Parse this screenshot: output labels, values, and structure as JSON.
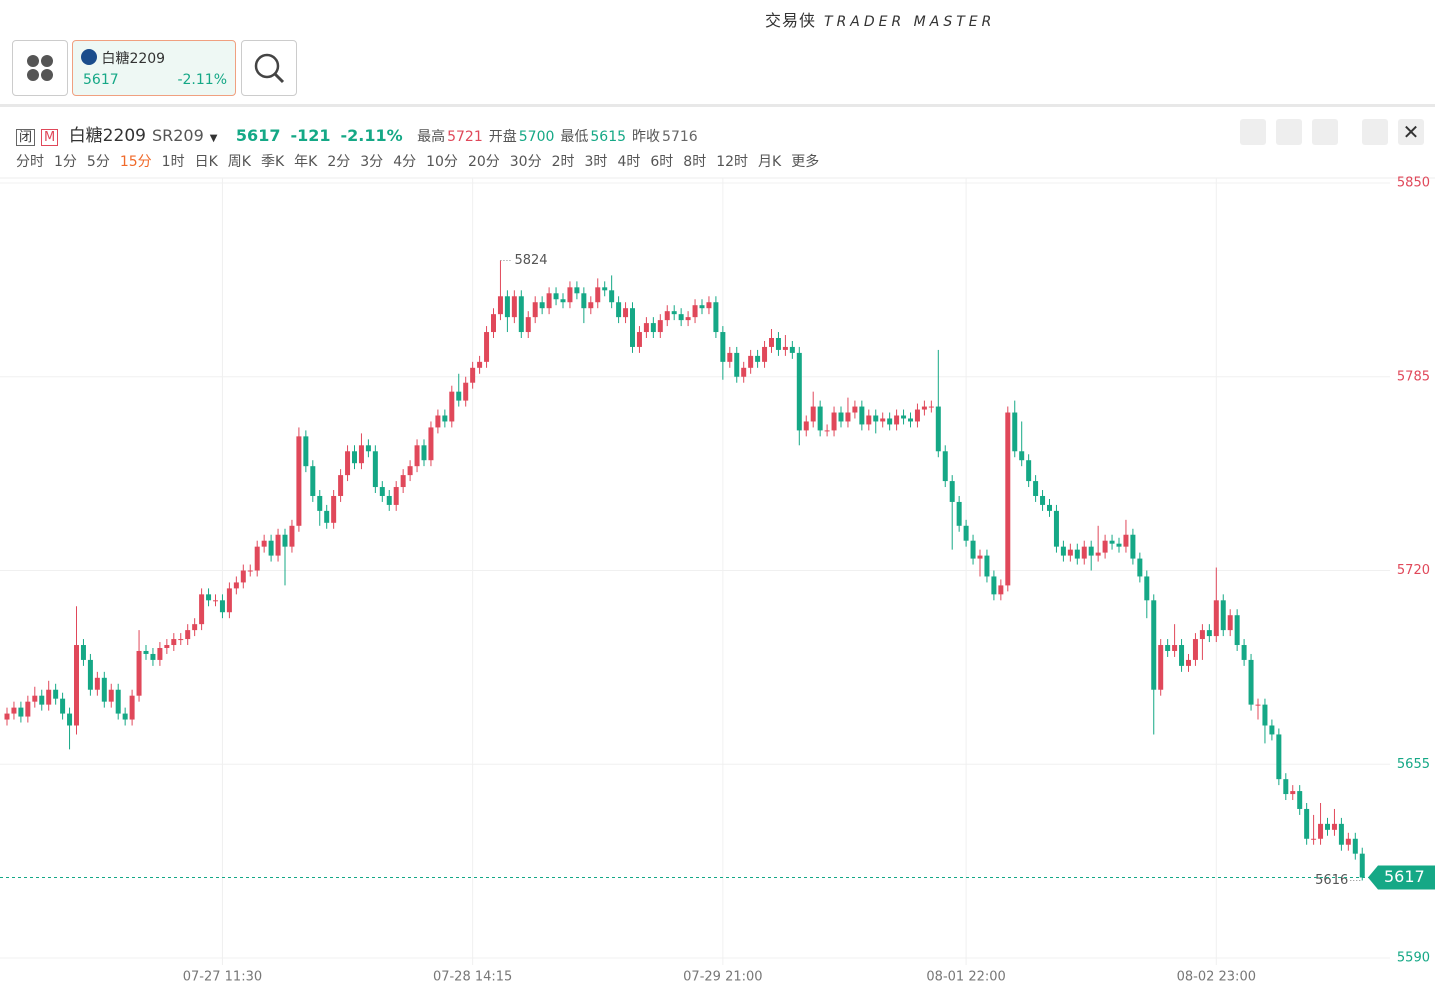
{
  "header": {
    "brand": "交易侠",
    "brand_en": "TRADER MASTER"
  },
  "tab": {
    "name": "白糖2209",
    "price": "5617",
    "change": "-2.11%"
  },
  "quote": {
    "status": "闭",
    "flag": "M",
    "name": "白糖2209",
    "code": "SR209",
    "price": "5617",
    "change": "-121",
    "change_pct": "-2.11%",
    "stats": [
      {
        "label": "最高",
        "value": "5721"
      },
      {
        "label": "开盘",
        "value": "5700"
      },
      {
        "label": "最低",
        "value": "5615"
      },
      {
        "label": "昨收",
        "value": "5716"
      }
    ]
  },
  "periods": [
    "分时",
    "1分",
    "5分",
    "15分",
    "1时",
    "日K",
    "周K",
    "季K",
    "年K",
    "2分",
    "3分",
    "4分",
    "10分",
    "20分",
    "30分",
    "2时",
    "3时",
    "4时",
    "6时",
    "8时",
    "12时",
    "月K",
    "更多"
  ],
  "active_period": "15分",
  "chart_data": {
    "type": "candlestick",
    "ylim": [
      5590,
      5850
    ],
    "yticks": [
      5850,
      5785,
      5720,
      5655,
      5590
    ],
    "up_color": "#e0485a",
    "down_color": "#15a886",
    "prev_close": 5716,
    "max_label": "5824",
    "min_label": "5616",
    "last_label": "5617",
    "last_value": 5617,
    "categories": [
      null,
      null,
      null,
      null,
      null,
      null,
      null,
      null,
      null,
      null,
      null,
      null,
      null,
      null,
      null,
      null,
      null,
      null,
      null,
      null,
      null,
      null,
      null,
      null,
      null,
      null,
      null,
      null,
      null,
      null,
      null,
      "07-27 11:30",
      null,
      null,
      null,
      null,
      null,
      null,
      null,
      null,
      null,
      null,
      null,
      null,
      null,
      null,
      null,
      null,
      null,
      null,
      null,
      null,
      null,
      null,
      null,
      null,
      null,
      null,
      null,
      null,
      null,
      null,
      null,
      null,
      null,
      null,
      null,
      "07-28 14:15",
      null,
      null,
      null,
      null,
      null,
      null,
      null,
      null,
      null,
      null,
      null,
      null,
      null,
      null,
      null,
      null,
      null,
      null,
      null,
      null,
      null,
      null,
      null,
      null,
      null,
      null,
      null,
      null,
      null,
      null,
      null,
      null,
      null,
      null,
      null,
      "07-29 21:00",
      null,
      null,
      null,
      null,
      null,
      null,
      null,
      null,
      null,
      null,
      null,
      null,
      null,
      null,
      null,
      null,
      null,
      null,
      null,
      null,
      null,
      null,
      null,
      null,
      null,
      null,
      null,
      null,
      null,
      null,
      null,
      null,
      null,
      null,
      "08-01 22:00",
      null,
      null,
      null,
      null,
      null,
      null,
      null,
      null,
      null,
      null,
      null,
      null,
      null,
      null,
      null,
      null,
      null,
      null,
      null,
      null,
      null,
      null,
      null,
      null,
      null,
      null,
      null,
      null,
      null,
      null,
      null,
      null,
      null,
      null,
      null,
      "08-02 23:00",
      null,
      null,
      null,
      null,
      null,
      null,
      null,
      null,
      null,
      null,
      null,
      null,
      null,
      null,
      null,
      null,
      null,
      null,
      null,
      null,
      null
    ],
    "ohlc": [
      [
        5670,
        5674,
        5668,
        5672
      ],
      [
        5672,
        5676,
        5670,
        5674
      ],
      [
        5674,
        5676,
        5669,
        5671
      ],
      [
        5671,
        5678,
        5669,
        5676
      ],
      [
        5676,
        5681,
        5674,
        5678
      ],
      [
        5678,
        5680,
        5673,
        5675
      ],
      [
        5675,
        5683,
        5673,
        5680
      ],
      [
        5680,
        5682,
        5675,
        5677
      ],
      [
        5677,
        5679,
        5670,
        5672
      ],
      [
        5672,
        5674,
        5660,
        5668
      ],
      [
        5668,
        5708,
        5665,
        5695
      ],
      [
        5695,
        5697,
        5688,
        5690
      ],
      [
        5690,
        5692,
        5678,
        5680
      ],
      [
        5680,
        5686,
        5678,
        5684
      ],
      [
        5684,
        5686,
        5674,
        5676
      ],
      [
        5676,
        5682,
        5674,
        5680
      ],
      [
        5680,
        5682,
        5670,
        5672
      ],
      [
        5672,
        5674,
        5668,
        5670
      ],
      [
        5670,
        5680,
        5668,
        5678
      ],
      [
        5678,
        5700,
        5676,
        5693
      ],
      [
        5693,
        5695,
        5690,
        5692
      ],
      [
        5692,
        5694,
        5688,
        5690
      ],
      [
        5690,
        5696,
        5688,
        5694
      ],
      [
        5694,
        5697,
        5692,
        5695
      ],
      [
        5695,
        5699,
        5693,
        5697
      ],
      [
        5697,
        5699,
        5695,
        5697
      ],
      [
        5697,
        5702,
        5695,
        5700
      ],
      [
        5700,
        5704,
        5698,
        5702
      ],
      [
        5702,
        5714,
        5700,
        5712
      ],
      [
        5712,
        5714,
        5708,
        5710
      ],
      [
        5710,
        5712,
        5708,
        5710
      ],
      [
        5710,
        5712,
        5704,
        5706
      ],
      [
        5706,
        5716,
        5704,
        5714
      ],
      [
        5714,
        5718,
        5712,
        5716
      ],
      [
        5716,
        5722,
        5714,
        5720
      ],
      [
        5720,
        5722,
        5718,
        5720
      ],
      [
        5720,
        5730,
        5718,
        5728
      ],
      [
        5728,
        5732,
        5726,
        5730
      ],
      [
        5730,
        5732,
        5723,
        5725
      ],
      [
        5725,
        5734,
        5723,
        5732
      ],
      [
        5732,
        5734,
        5715,
        5728
      ],
      [
        5728,
        5737,
        5726,
        5735
      ],
      [
        5735,
        5768,
        5733,
        5765
      ],
      [
        5765,
        5767,
        5753,
        5755
      ],
      [
        5755,
        5757,
        5743,
        5745
      ],
      [
        5745,
        5747,
        5735,
        5740
      ],
      [
        5740,
        5742,
        5734,
        5736
      ],
      [
        5736,
        5747,
        5734,
        5745
      ],
      [
        5745,
        5754,
        5743,
        5752
      ],
      [
        5752,
        5762,
        5750,
        5760
      ],
      [
        5760,
        5762,
        5754,
        5756
      ],
      [
        5756,
        5766,
        5754,
        5762
      ],
      [
        5762,
        5764,
        5758,
        5760
      ],
      [
        5760,
        5762,
        5746,
        5748
      ],
      [
        5748,
        5750,
        5743,
        5745
      ],
      [
        5745,
        5747,
        5740,
        5742
      ],
      [
        5742,
        5750,
        5740,
        5748
      ],
      [
        5748,
        5754,
        5746,
        5752
      ],
      [
        5752,
        5757,
        5750,
        5755
      ],
      [
        5755,
        5764,
        5753,
        5762
      ],
      [
        5762,
        5764,
        5755,
        5757
      ],
      [
        5757,
        5770,
        5755,
        5768
      ],
      [
        5768,
        5774,
        5766,
        5772
      ],
      [
        5772,
        5774,
        5768,
        5770
      ],
      [
        5770,
        5782,
        5768,
        5780
      ],
      [
        5780,
        5786,
        5775,
        5777
      ],
      [
        5777,
        5785,
        5775,
        5783
      ],
      [
        5783,
        5790,
        5781,
        5788
      ],
      [
        5788,
        5792,
        5786,
        5790
      ],
      [
        5790,
        5802,
        5788,
        5800
      ],
      [
        5800,
        5808,
        5798,
        5806
      ],
      [
        5806,
        5824,
        5804,
        5812
      ],
      [
        5812,
        5814,
        5800,
        5805
      ],
      [
        5805,
        5814,
        5803,
        5812
      ],
      [
        5812,
        5814,
        5798,
        5800
      ],
      [
        5800,
        5807,
        5798,
        5805
      ],
      [
        5805,
        5812,
        5803,
        5810
      ],
      [
        5810,
        5812,
        5806,
        5808
      ],
      [
        5808,
        5815,
        5806,
        5813
      ],
      [
        5813,
        5815,
        5809,
        5811
      ],
      [
        5811,
        5813,
        5808,
        5810
      ],
      [
        5810,
        5817,
        5808,
        5815
      ],
      [
        5815,
        5817,
        5811,
        5813
      ],
      [
        5813,
        5815,
        5803,
        5808
      ],
      [
        5808,
        5812,
        5806,
        5810
      ],
      [
        5810,
        5818,
        5808,
        5815
      ],
      [
        5815,
        5817,
        5812,
        5814
      ],
      [
        5814,
        5819,
        5808,
        5810
      ],
      [
        5810,
        5812,
        5803,
        5805
      ],
      [
        5805,
        5810,
        5803,
        5808
      ],
      [
        5808,
        5810,
        5793,
        5795
      ],
      [
        5795,
        5802,
        5793,
        5800
      ],
      [
        5800,
        5805,
        5798,
        5803
      ],
      [
        5803,
        5805,
        5798,
        5800
      ],
      [
        5800,
        5806,
        5798,
        5804
      ],
      [
        5804,
        5809,
        5802,
        5807
      ],
      [
        5807,
        5809,
        5804,
        5806
      ],
      [
        5806,
        5808,
        5802,
        5804
      ],
      [
        5804,
        5807,
        5802,
        5805
      ],
      [
        5805,
        5811,
        5803,
        5809
      ],
      [
        5809,
        5811,
        5806,
        5808
      ],
      [
        5808,
        5812,
        5806,
        5810
      ],
      [
        5810,
        5812,
        5798,
        5800
      ],
      [
        5800,
        5802,
        5784,
        5790
      ],
      [
        5790,
        5795,
        5788,
        5793
      ],
      [
        5793,
        5795,
        5783,
        5785
      ],
      [
        5785,
        5790,
        5783,
        5788
      ],
      [
        5788,
        5794,
        5786,
        5792
      ],
      [
        5792,
        5794,
        5788,
        5790
      ],
      [
        5790,
        5797,
        5788,
        5795
      ],
      [
        5795,
        5801,
        5793,
        5798
      ],
      [
        5798,
        5800,
        5792,
        5794
      ],
      [
        5794,
        5799,
        5792,
        5795
      ],
      [
        5795,
        5797,
        5791,
        5793
      ],
      [
        5793,
        5795,
        5762,
        5767
      ],
      [
        5767,
        5772,
        5765,
        5770
      ],
      [
        5770,
        5780,
        5768,
        5775
      ],
      [
        5775,
        5777,
        5765,
        5767
      ],
      [
        5767,
        5769,
        5765,
        5767
      ],
      [
        5767,
        5775,
        5765,
        5773
      ],
      [
        5773,
        5775,
        5768,
        5770
      ],
      [
        5770,
        5778,
        5768,
        5773
      ],
      [
        5773,
        5777,
        5771,
        5775
      ],
      [
        5775,
        5777,
        5767,
        5769
      ],
      [
        5769,
        5774,
        5767,
        5772
      ],
      [
        5772,
        5774,
        5766,
        5770
      ],
      [
        5770,
        5773,
        5768,
        5771
      ],
      [
        5771,
        5773,
        5767,
        5769
      ],
      [
        5769,
        5774,
        5767,
        5772
      ],
      [
        5772,
        5774,
        5769,
        5771
      ],
      [
        5771,
        5773,
        5768,
        5770
      ],
      [
        5770,
        5776,
        5768,
        5774
      ],
      [
        5774,
        5777,
        5772,
        5775
      ],
      [
        5775,
        5777,
        5773,
        5775
      ],
      [
        5775,
        5794,
        5758,
        5760
      ],
      [
        5760,
        5762,
        5748,
        5750
      ],
      [
        5750,
        5752,
        5727,
        5743
      ],
      [
        5743,
        5745,
        5733,
        5735
      ],
      [
        5735,
        5737,
        5728,
        5730
      ],
      [
        5730,
        5732,
        5722,
        5724
      ],
      [
        5724,
        5727,
        5718,
        5725
      ],
      [
        5725,
        5727,
        5716,
        5718
      ],
      [
        5718,
        5720,
        5710,
        5712
      ],
      [
        5712,
        5717,
        5710,
        5715
      ],
      [
        5715,
        5775,
        5713,
        5773
      ],
      [
        5773,
        5777,
        5758,
        5760
      ],
      [
        5760,
        5770,
        5755,
        5757
      ],
      [
        5757,
        5759,
        5748,
        5750
      ],
      [
        5750,
        5752,
        5743,
        5745
      ],
      [
        5745,
        5747,
        5740,
        5742
      ],
      [
        5742,
        5744,
        5738,
        5740
      ],
      [
        5740,
        5742,
        5726,
        5728
      ],
      [
        5728,
        5730,
        5723,
        5725
      ],
      [
        5725,
        5729,
        5723,
        5727
      ],
      [
        5727,
        5729,
        5722,
        5724
      ],
      [
        5724,
        5730,
        5722,
        5728
      ],
      [
        5728,
        5730,
        5720,
        5725
      ],
      [
        5725,
        5735,
        5723,
        5726
      ],
      [
        5726,
        5732,
        5724,
        5730
      ],
      [
        5730,
        5732,
        5727,
        5729
      ],
      [
        5729,
        5731,
        5726,
        5728
      ],
      [
        5728,
        5737,
        5726,
        5732
      ],
      [
        5732,
        5734,
        5722,
        5724
      ],
      [
        5724,
        5726,
        5716,
        5718
      ],
      [
        5718,
        5720,
        5704,
        5710
      ],
      [
        5710,
        5712,
        5665,
        5680
      ],
      [
        5680,
        5697,
        5678,
        5695
      ],
      [
        5695,
        5697,
        5691,
        5693
      ],
      [
        5693,
        5702,
        5691,
        5695
      ],
      [
        5695,
        5697,
        5686,
        5688
      ],
      [
        5688,
        5692,
        5686,
        5690
      ],
      [
        5690,
        5699,
        5688,
        5697
      ],
      [
        5697,
        5702,
        5690,
        5700
      ],
      [
        5700,
        5702,
        5696,
        5698
      ],
      [
        5698,
        5721,
        5696,
        5710
      ],
      [
        5710,
        5712,
        5698,
        5700
      ],
      [
        5700,
        5707,
        5698,
        5705
      ],
      [
        5705,
        5707,
        5693,
        5695
      ],
      [
        5695,
        5697,
        5688,
        5690
      ],
      [
        5690,
        5692,
        5673,
        5675
      ],
      [
        5675,
        5677,
        5670,
        5675
      ],
      [
        5675,
        5677,
        5662,
        5668
      ],
      [
        5668,
        5670,
        5663,
        5665
      ],
      [
        5665,
        5667,
        5648,
        5650
      ],
      [
        5650,
        5652,
        5643,
        5645
      ],
      [
        5645,
        5648,
        5643,
        5646
      ],
      [
        5646,
        5648,
        5638,
        5640
      ],
      [
        5640,
        5642,
        5628,
        5630
      ],
      [
        5630,
        5638,
        5628,
        5630
      ],
      [
        5630,
        5642,
        5628,
        5635
      ],
      [
        5635,
        5637,
        5631,
        5633
      ],
      [
        5633,
        5640,
        5631,
        5635
      ],
      [
        5635,
        5637,
        5626,
        5628
      ],
      [
        5628,
        5632,
        5626,
        5630
      ],
      [
        5630,
        5632,
        5623,
        5625
      ],
      [
        5625,
        5627,
        5616,
        5617
      ]
    ]
  }
}
